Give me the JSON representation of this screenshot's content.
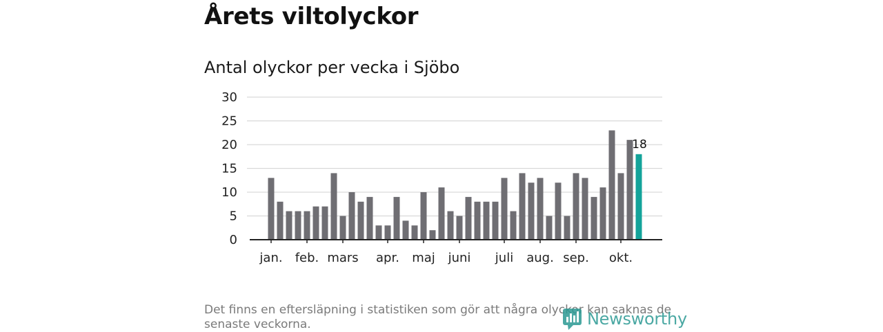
{
  "header": {
    "title": "Årets viltolyckor"
  },
  "chart_data": {
    "type": "bar",
    "title": "Antal olyckor per vecka i Sjöbo",
    "xlabel": "",
    "ylabel": "",
    "ylim": [
      0,
      30
    ],
    "yticks": [
      0,
      5,
      10,
      15,
      20,
      25,
      30
    ],
    "grid": true,
    "legend": "none",
    "weeks": [
      1,
      2,
      3,
      4,
      5,
      6,
      7,
      8,
      9,
      10,
      11,
      12,
      13,
      14,
      15,
      16,
      17,
      18,
      19,
      20,
      21,
      22,
      23,
      24,
      25,
      26,
      27,
      28,
      29,
      30,
      31,
      32,
      33,
      34,
      35,
      36,
      37,
      38,
      39,
      40,
      41,
      42
    ],
    "values": [
      13,
      8,
      6,
      6,
      6,
      7,
      7,
      14,
      5,
      10,
      8,
      9,
      3,
      3,
      9,
      4,
      3,
      10,
      2,
      11,
      6,
      5,
      9,
      8,
      8,
      8,
      13,
      6,
      14,
      12,
      13,
      5,
      12,
      5,
      14,
      13,
      9,
      11,
      23,
      14,
      21,
      18
    ],
    "month_labels": [
      {
        "label": "jan.",
        "week": 1
      },
      {
        "label": "feb.",
        "week": 5
      },
      {
        "label": "mars",
        "week": 9
      },
      {
        "label": "apr.",
        "week": 14
      },
      {
        "label": "maj",
        "week": 18
      },
      {
        "label": "juni",
        "week": 22
      },
      {
        "label": "juli",
        "week": 27
      },
      {
        "label": "aug.",
        "week": 31
      },
      {
        "label": "sep.",
        "week": 35
      },
      {
        "label": "okt.",
        "week": 40
      }
    ],
    "highlight": {
      "week": 42,
      "value": 18,
      "label": "18"
    },
    "colors": {
      "bar": "#6f6e73",
      "highlight": "#13a39a",
      "grid": "#d9d9d9",
      "axis": "#222222"
    }
  },
  "footer": {
    "note": "Det finns en eftersläpning i statistiken som gör att några olyckor kan saknas de senaste veckorna.",
    "brand": "Newsworthy",
    "brand_icon": "newsworthy-logo-icon",
    "brand_color": "#2c9a94"
  }
}
